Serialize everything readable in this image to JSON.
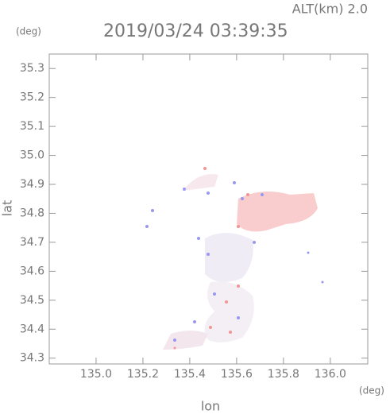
{
  "title": "2019/03/24 03:39:35",
  "altitude": "ALT(km) 2.0",
  "y_unit": "(deg)",
  "x_unit": "(deg)",
  "chart_data": {
    "type": "map",
    "xlabel": "lon",
    "ylabel": "lat",
    "xlim": [
      134.8,
      136.16
    ],
    "ylim": [
      34.28,
      35.35
    ],
    "xticks": [
      {
        "value": 135,
        "label": "135.0"
      },
      135.2,
      135.4,
      135.6,
      135.8,
      {
        "value": 136,
        "label": "136.0"
      }
    ],
    "yticks": [
      34.3,
      34.4,
      34.5,
      34.6,
      34.7,
      34.8,
      34.9,
      {
        "value": 35,
        "label": "35.0"
      },
      35.1,
      35.2,
      35.3
    ]
  }
}
